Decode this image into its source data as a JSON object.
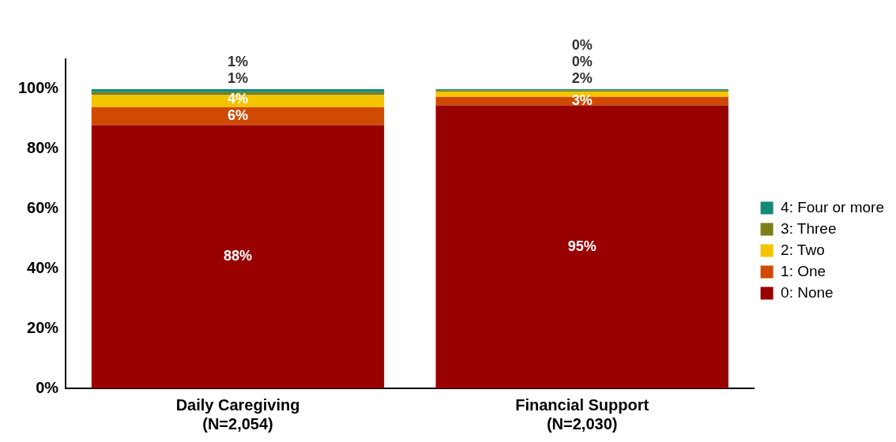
{
  "chart_data": {
    "type": "bar",
    "stacked": true,
    "categories": [
      "Daily Caregiving\n(N=2,054)",
      "Financial Support\n(N=2,030)"
    ],
    "series": [
      {
        "name": "0: None",
        "color": "#990000",
        "values": [
          88,
          94.6
        ],
        "value_labels": [
          "88%",
          "95%"
        ]
      },
      {
        "name": "1: One",
        "color": "#d04a02",
        "values": [
          6,
          2.8
        ],
        "value_labels": [
          "6%",
          "3%"
        ]
      },
      {
        "name": "2: Two",
        "color": "#f5c400",
        "values": [
          4,
          1.8
        ],
        "value_labels": [
          "4%",
          "2%"
        ]
      },
      {
        "name": "3: Three",
        "color": "#7a7f1a",
        "values": [
          1,
          0.4
        ],
        "value_labels": [
          "1%",
          "0%"
        ]
      },
      {
        "name": "4: Four or more",
        "color": "#128a76",
        "values": [
          1,
          0.4
        ],
        "value_labels": [
          "1%",
          "0%"
        ]
      }
    ],
    "ylim": [
      0,
      110
    ],
    "yticks": [
      {
        "value": 0,
        "label": "0%"
      },
      {
        "value": 20,
        "label": "20%"
      },
      {
        "value": 40,
        "label": "40%"
      },
      {
        "value": 60,
        "label": "60%"
      },
      {
        "value": 80,
        "label": "80%"
      },
      {
        "value": 100,
        "label": "100%"
      }
    ],
    "grid": false,
    "legend": "right"
  }
}
